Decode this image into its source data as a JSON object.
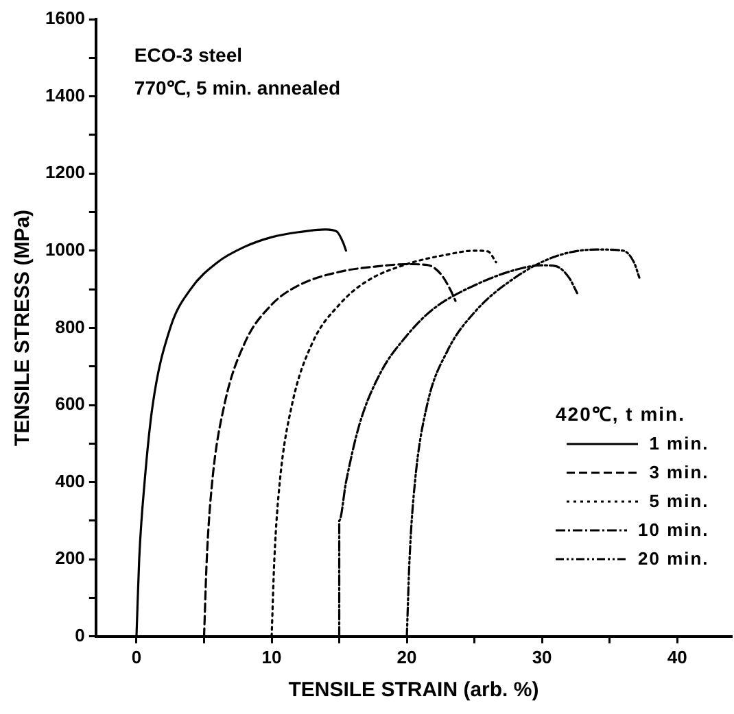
{
  "chart_data": {
    "type": "line",
    "xlabel": "TENSILE STRAIN (arb. %)",
    "ylabel": "TENSILE STRESS (MPa)",
    "legend_title": "420℃, t min.",
    "legend": "bottom right",
    "grid": false,
    "marker": "none",
    "annotations": [
      "ECO-3 steel",
      "770℃, 5 min. annealed"
    ],
    "xlim": [
      -3,
      44
    ],
    "xticks": [
      0,
      {
        "value": 5,
        "label": null
      },
      10,
      {
        "value": 15,
        "label": null
      },
      20,
      {
        "value": 25,
        "label": null
      },
      30,
      {
        "value": 35,
        "label": null
      },
      40
    ],
    "ylim": [
      0,
      1600
    ],
    "yticks": [
      0,
      {
        "value": 100,
        "label": null
      },
      200,
      {
        "value": 300,
        "label": null
      },
      400,
      {
        "value": 500,
        "label": null
      },
      600,
      {
        "value": 700,
        "label": null
      },
      800,
      {
        "value": 900,
        "label": null
      },
      1000,
      {
        "value": 1100,
        "label": null
      },
      1200,
      {
        "value": 1300,
        "label": null
      },
      1400,
      {
        "value": 1500,
        "label": null
      },
      1600
    ],
    "series": [
      {
        "name": "1 min.",
        "color": "#000000",
        "line_style": "solid",
        "x": [
          0,
          0.2,
          0.6,
          1.2,
          2.5,
          4,
          6,
          8,
          10,
          12,
          14,
          14.8,
          15.3,
          15.5
        ],
        "values": [
          0,
          200,
          400,
          600,
          800,
          900,
          970,
          1010,
          1035,
          1048,
          1055,
          1050,
          1020,
          1000
        ]
      },
      {
        "name": "3 min.",
        "color": "#000000",
        "line_style": "dashed",
        "x": [
          5,
          5.2,
          5.6,
          6.5,
          8,
          10,
          12,
          15,
          18,
          20,
          21.5,
          22.5,
          23.2,
          23.6
        ],
        "values": [
          0,
          200,
          400,
          600,
          760,
          860,
          910,
          945,
          960,
          965,
          963,
          940,
          900,
          870
        ]
      },
      {
        "name": "5 min.",
        "color": "#000000",
        "line_style": "dotted",
        "x": [
          10,
          10.2,
          10.6,
          11.5,
          13,
          15,
          17,
          20,
          23,
          25,
          26,
          26.6
        ],
        "values": [
          0,
          200,
          400,
          600,
          760,
          860,
          920,
          965,
          990,
          1000,
          998,
          970
        ]
      },
      {
        "name": "10 min.",
        "color": "#000000",
        "line_style": "dashdot",
        "x": [
          15,
          15,
          15.5,
          16.5,
          18,
          20,
          22,
          25,
          28,
          30,
          31,
          32,
          32.6
        ],
        "values": [
          0,
          300,
          400,
          550,
          680,
          780,
          850,
          910,
          950,
          962,
          960,
          930,
          890
        ]
      },
      {
        "name": "20 min.",
        "color": "#000000",
        "line_style": "dashdotdot",
        "x": [
          20,
          20.2,
          20.6,
          21.5,
          23,
          25,
          28,
          31,
          34,
          36,
          36.8,
          37.2
        ],
        "values": [
          0,
          200,
          400,
          600,
          740,
          840,
          930,
          985,
          1003,
          1000,
          970,
          930
        ]
      }
    ]
  }
}
